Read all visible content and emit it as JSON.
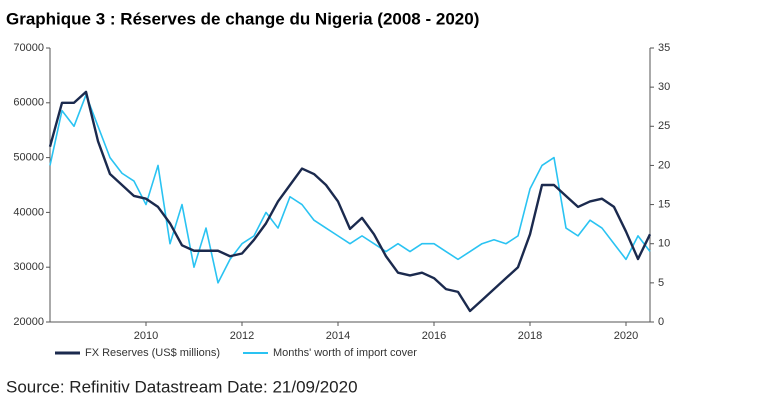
{
  "chart_data": {
    "type": "line",
    "title": "Graphique 3 : Réserves de change du Nigeria (2008 - 2020)",
    "source": "Source: Refinitiv Datastream Date: 21/09/2020",
    "x": [
      2008.0,
      2008.25,
      2008.5,
      2008.75,
      2009.0,
      2009.25,
      2009.5,
      2009.75,
      2010.0,
      2010.25,
      2010.5,
      2010.75,
      2011.0,
      2011.25,
      2011.5,
      2011.75,
      2012.0,
      2012.25,
      2012.5,
      2012.75,
      2013.0,
      2013.25,
      2013.5,
      2013.75,
      2014.0,
      2014.25,
      2014.5,
      2014.75,
      2015.0,
      2015.25,
      2015.5,
      2015.75,
      2016.0,
      2016.25,
      2016.5,
      2016.75,
      2017.0,
      2017.25,
      2017.5,
      2017.75,
      2018.0,
      2018.25,
      2018.5,
      2018.75,
      2019.0,
      2019.25,
      2019.5,
      2019.75,
      2020.0,
      2020.25,
      2020.5
    ],
    "series": [
      {
        "name": "FX Reserves (US$ millions)",
        "color": "#1b2a4e",
        "axis": "y",
        "values": [
          52000,
          60000,
          60000,
          62000,
          53000,
          47000,
          45000,
          43000,
          42500,
          41000,
          38000,
          34000,
          33000,
          33000,
          33000,
          32000,
          32500,
          35000,
          38000,
          42000,
          45000,
          48000,
          47000,
          45000,
          42000,
          37000,
          39000,
          36000,
          32000,
          29000,
          28500,
          29000,
          28000,
          26000,
          25500,
          22000,
          24000,
          26000,
          28000,
          30000,
          36000,
          45000,
          45000,
          43000,
          41000,
          42000,
          42500,
          41000,
          36500,
          31500,
          36000
        ]
      },
      {
        "name": "Months' worth of import cover",
        "color": "#2ac3f2",
        "axis": "y2",
        "values": [
          20,
          27,
          25,
          29,
          25,
          21,
          19,
          18,
          15,
          20,
          10,
          15,
          7,
          12,
          5,
          8,
          10,
          11,
          14,
          12,
          16,
          15,
          13,
          12,
          11,
          10,
          11,
          10,
          9,
          10,
          9,
          10,
          10,
          9,
          8,
          9,
          10,
          10.5,
          10,
          11,
          17,
          20,
          21,
          12,
          11,
          13,
          12,
          10,
          8,
          11,
          9
        ]
      }
    ],
    "xlim": [
      2008.0,
      2020.5
    ],
    "xticks": [
      2010,
      2012,
      2014,
      2016,
      2018,
      2020
    ],
    "ylim": [
      20000,
      70000
    ],
    "yticks": [
      20000,
      30000,
      40000,
      50000,
      60000,
      70000
    ],
    "y2lim": [
      0,
      35
    ],
    "y2ticks": [
      0,
      5,
      10,
      15,
      20,
      25,
      30,
      35
    ],
    "legend": "bottom"
  }
}
